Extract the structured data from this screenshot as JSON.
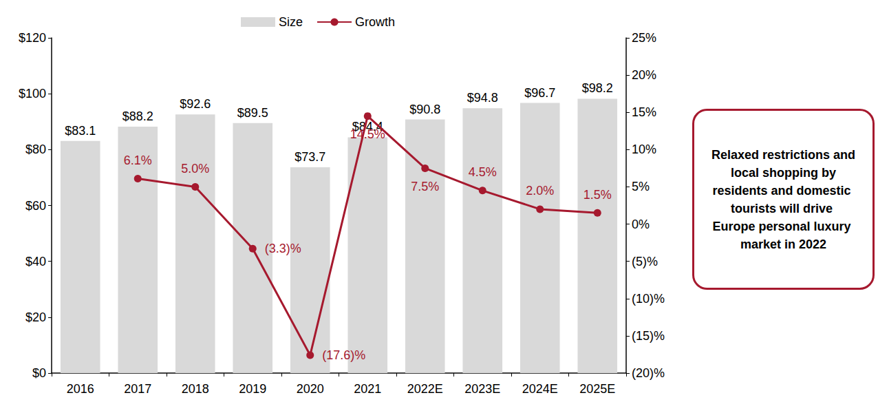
{
  "chart_data": {
    "type": "bar",
    "categories": [
      "2016",
      "2017",
      "2018",
      "2019",
      "2020",
      "2021",
      "2022E",
      "2023E",
      "2024E",
      "2025E"
    ],
    "series": [
      {
        "name": "Size",
        "type": "bar",
        "color": "#d9d9d9",
        "values": [
          83.1,
          88.2,
          92.6,
          89.5,
          73.7,
          84.4,
          90.8,
          94.8,
          96.7,
          98.2
        ],
        "value_labels": [
          "$83.1",
          "$88.2",
          "$92.6",
          "$89.5",
          "$73.7",
          "$84.4",
          "$90.8",
          "$94.8",
          "$96.7",
          "$98.2"
        ]
      },
      {
        "name": "Growth",
        "type": "line",
        "color": "#a6192e",
        "axis": "y2",
        "marker": "circle",
        "values": [
          null,
          6.1,
          5.0,
          -3.3,
          -17.6,
          14.5,
          7.5,
          4.5,
          2.0,
          1.5
        ],
        "value_labels": [
          null,
          "6.1%",
          "5.0%",
          "(3.3)%",
          "(17.6)%",
          "14.5%",
          "7.5%",
          "4.5%",
          "2.0%",
          "1.5%"
        ]
      }
    ],
    "ylim": [
      0,
      120
    ],
    "yticks": [
      {
        "value": 0,
        "label": "$0"
      },
      {
        "value": 20,
        "label": "$20"
      },
      {
        "value": 40,
        "label": "$40"
      },
      {
        "value": 60,
        "label": "$60"
      },
      {
        "value": 80,
        "label": "$80"
      },
      {
        "value": 100,
        "label": "$100"
      },
      {
        "value": 120,
        "label": "$120"
      }
    ],
    "y2lim": [
      -20,
      25
    ],
    "y2ticks": [
      {
        "value": -20,
        "label": "(20)%"
      },
      {
        "value": -15,
        "label": "(15)%"
      },
      {
        "value": -10,
        "label": "(10)%"
      },
      {
        "value": -5,
        "label": "(5)%"
      },
      {
        "value": 0,
        "label": "0%"
      },
      {
        "value": 5,
        "label": "5%"
      },
      {
        "value": 10,
        "label": "10%"
      },
      {
        "value": 15,
        "label": "15%"
      },
      {
        "value": 20,
        "label": "20%"
      },
      {
        "value": 25,
        "label": "25%"
      }
    ],
    "grid": false,
    "legend": "top",
    "data_labels": true,
    "annotation": "Relaxed restrictions and local shopping by residents and domestic tourists will drive Europe personal luxury market in 2022"
  }
}
